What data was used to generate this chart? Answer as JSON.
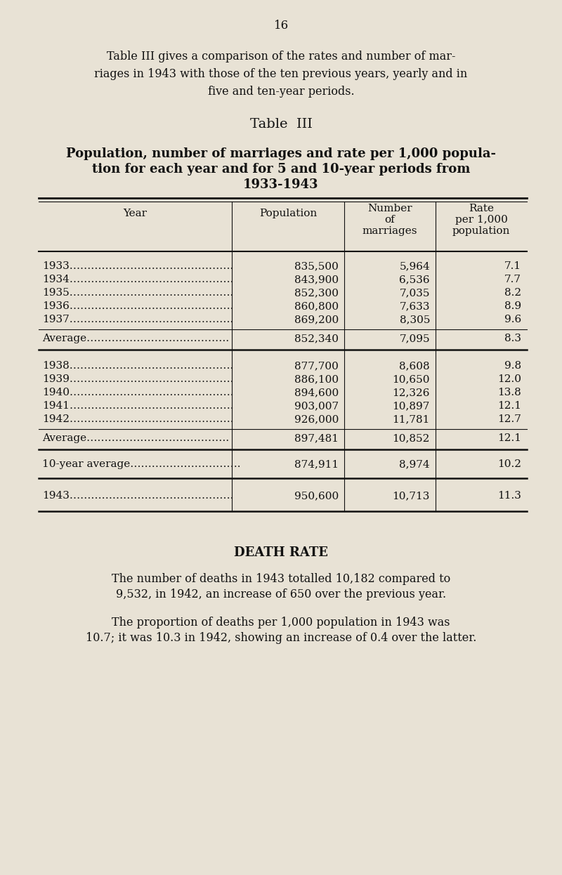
{
  "page_number": "16",
  "bg_color": "#e8e2d5",
  "intro_line1": "Table III gives a comparison of the rates and number of mar-",
  "intro_line2": "riages in 1943 with those of the ten previous years, yearly and in",
  "intro_line3": "five and ten-year periods.",
  "table_title": "Table  III",
  "subtitle_line1": "Population, number of marriages and rate per 1,000 popula-",
  "subtitle_line2": "tion for each year and for 5 and 10-year periods from",
  "subtitle_line3": "1933-1943",
  "col_headers": [
    "Year",
    "Population",
    "Number\nof\nmarriages",
    "Rate\nper 1,000\npopulation"
  ],
  "year_rows_1": [
    [
      "1933……………………………………….",
      "835,500",
      "5,964",
      "7.1"
    ],
    [
      "1934……………………………………….",
      "843,900",
      "6,536",
      "7.7"
    ],
    [
      "1935……………………………………….",
      "852,300",
      "7,035",
      "8.2"
    ],
    [
      "1936……………………………………….",
      "860,800",
      "7,633",
      "8.9"
    ],
    [
      "1937……………………………………….",
      "869,200",
      "8,305",
      "9.6"
    ]
  ],
  "avg_row_1": [
    "Average………………………………….",
    "852,340",
    "7,095",
    "8.3"
  ],
  "year_rows_2": [
    [
      "1938……………………………………….",
      "877,700",
      "8,608",
      "9.8"
    ],
    [
      "1939……………………………………….",
      "886,100",
      "10,650",
      "12.0"
    ],
    [
      "1940……………………………………….",
      "894,600",
      "12,326",
      "13.8"
    ],
    [
      "1941……………………………………….",
      "903,007",
      "10,897",
      "12.1"
    ],
    [
      "1942……………………………………….",
      "926,000",
      "11,781",
      "12.7"
    ]
  ],
  "avg_row_2": [
    "Average………………………………….",
    "897,481",
    "10,852",
    "12.1"
  ],
  "avg_row_10": [
    "10-year average………………………….",
    "874,911",
    "8,974",
    "10.2"
  ],
  "row_1943": [
    "1943……………………………………….",
    "950,600",
    "10,713",
    "11.3"
  ],
  "death_rate_title": "DEATH RATE",
  "death_p1_line1": "The number of deaths in 1943 totalled 10,182 compared to",
  "death_p1_line2": "9,532, in 1942, an increase of 650 over the previous year.",
  "death_p2_line1": "The proportion of deaths per 1,000 population in 1943 was",
  "death_p2_line2": "10.7; it was 10.3 in 1942, showing an increase of 0.4 over the latter.",
  "text_color": "#111111",
  "line_color": "#111111"
}
